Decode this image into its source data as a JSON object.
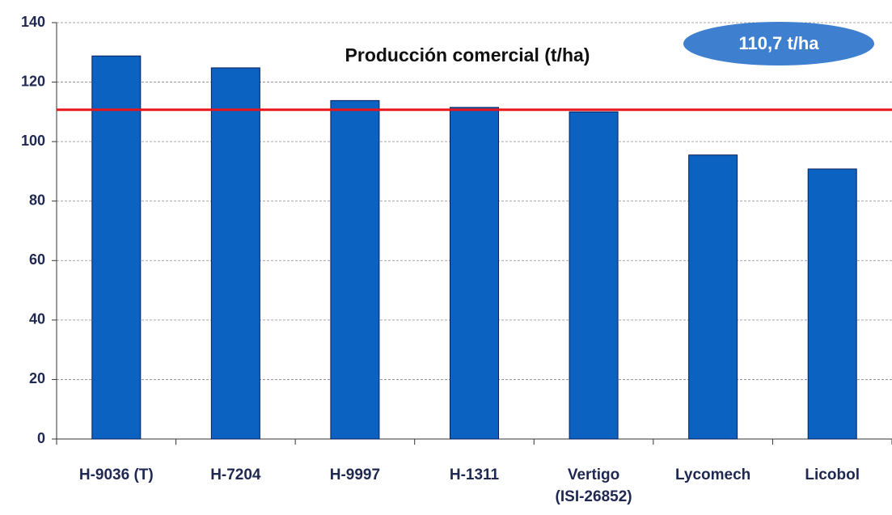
{
  "chart_data": {
    "type": "bar",
    "title": "Producción comercial (t/ha)",
    "categories": [
      "H-9036 (T)",
      "H-7204",
      "H-9997",
      "H-1311",
      "Vertigo\n(ISI-26852)",
      "Lycomech",
      "Licobol"
    ],
    "values": [
      128.8,
      124.8,
      113.8,
      111.5,
      110,
      95.5,
      90.8
    ],
    "color": "#0b62c1",
    "ylim": [
      0,
      140
    ],
    "yticks": [
      0,
      20,
      40,
      60,
      80,
      100,
      120,
      140
    ],
    "grid": true,
    "reference_line": {
      "value": 110.7,
      "label": "110,7 t/ha",
      "color": "#e8161b"
    }
  }
}
